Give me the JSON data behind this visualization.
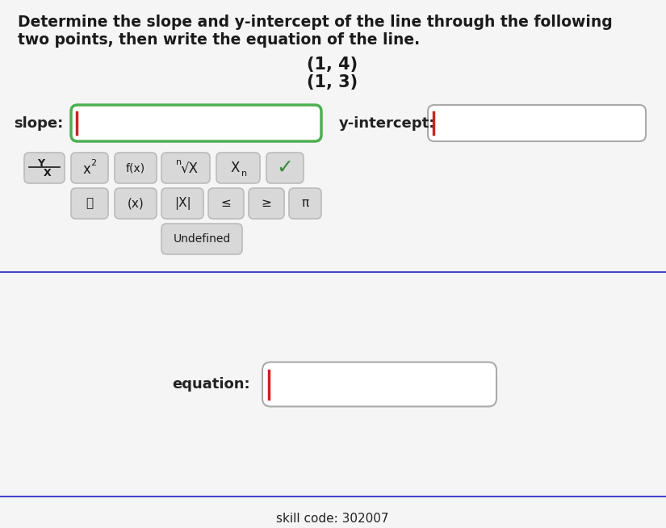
{
  "bg_color": "#e8e8e8",
  "panel_color": "#f5f5f5",
  "white_color": "#ffffff",
  "title_line1": "Determine the slope and y-intercept of the line through the following",
  "title_line2": "two points, then write the equation of the line.",
  "point1": "(1, 4)",
  "point2": "(1, 3)",
  "slope_label": "slope:",
  "yintercept_label": "y-intercept:",
  "equation_label": "equation:",
  "skill_code": "skill code: 302007",
  "btn_bg": "#d8d8d8",
  "btn_border": "#bbbbbb",
  "check_color": "#3a8c3a",
  "input_border_slope": "#4caf50",
  "input_border_yint": "#aaaaaa",
  "input_border_eq": "#aaaaaa",
  "cursor_color": "#cc2222",
  "text_color": "#1a1a1a",
  "label_color": "#222222",
  "divider_color": "#4444cc",
  "font_size_title": 13.5,
  "font_size_points": 15,
  "font_size_labels": 13,
  "font_size_btns": 11,
  "font_size_skill": 11,
  "title_bold": true
}
